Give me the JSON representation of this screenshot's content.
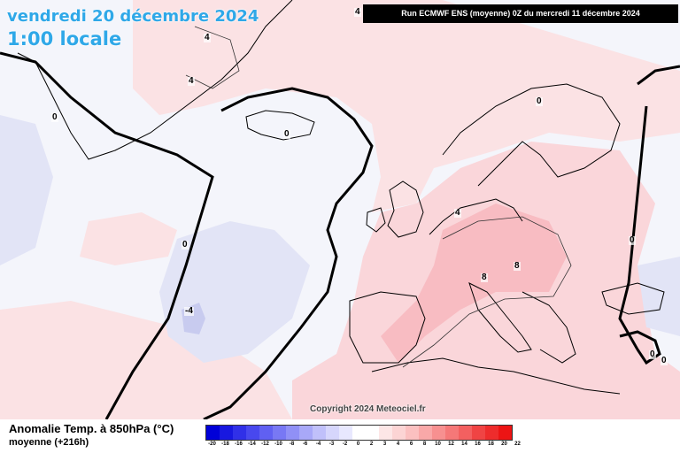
{
  "header": {
    "date": "vendredi 20 décembre 2024",
    "local_time": "1:00 locale",
    "run_info": "Run ECMWF ENS (moyenne) 0Z du mercredi 11 décembre 2024"
  },
  "footer": {
    "copyright": "Copyright 2024 Meteociel.fr"
  },
  "legend": {
    "title": "Anomalie Temp. à 850hPa (°C)",
    "subtitle": "moyenne   (+216h)",
    "ticks": [
      "-20",
      "-18",
      "-16",
      "-14",
      "-12",
      "-10",
      "-8",
      "-6",
      "-4",
      "-3",
      "-2",
      "0",
      "2",
      "3",
      "4",
      "6",
      "8",
      "10",
      "12",
      "14",
      "16",
      "18",
      "20",
      "22"
    ],
    "colors": [
      "#0000d8",
      "#1818e0",
      "#3030e8",
      "#4848ee",
      "#6060f2",
      "#7878f4",
      "#9090f6",
      "#a8a8f8",
      "#c0c0fa",
      "#d6d6fc",
      "#e8e8fe",
      "#ffffff",
      "#ffffff",
      "#fde6e6",
      "#fcd4d4",
      "#fbc0c0",
      "#f9a8a8",
      "#f79090",
      "#f57878",
      "#f36060",
      "#f04444",
      "#ee2c2c",
      "#ec1414"
    ]
  },
  "map": {
    "contour_labels": [
      "0",
      "0",
      "0",
      "0",
      "0",
      "0",
      "4",
      "4",
      "4",
      "4",
      "8",
      "8",
      "-4",
      "0"
    ]
  }
}
